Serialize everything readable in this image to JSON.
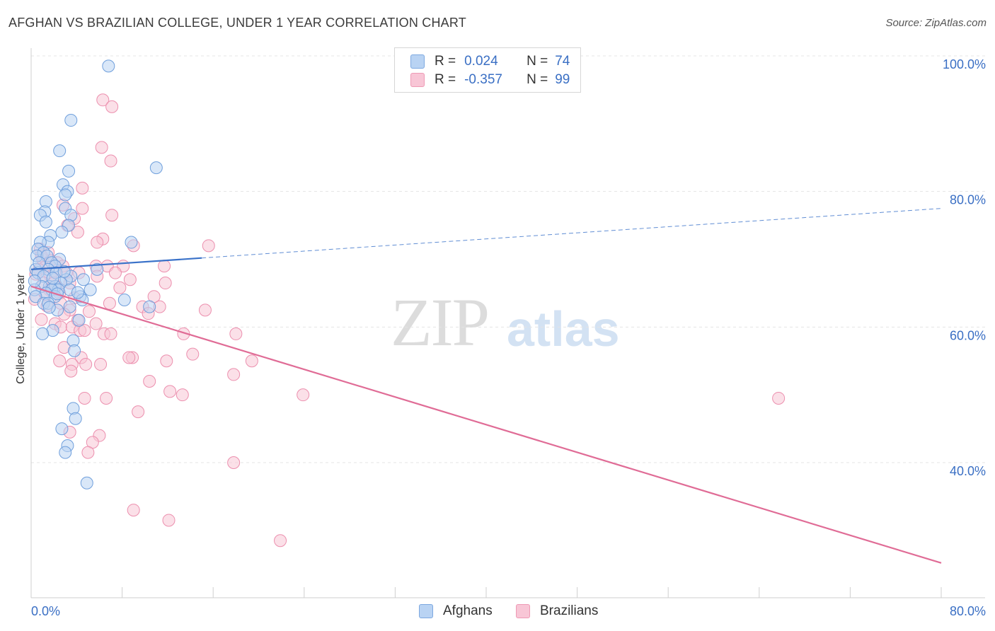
{
  "header": {
    "title": "AFGHAN VS BRAZILIAN COLLEGE, UNDER 1 YEAR CORRELATION CHART",
    "source": "Source: ZipAtlas.com"
  },
  "watermark": {
    "zip": "ZIP",
    "atlas": "atlas"
  },
  "legend": {
    "afghans": {
      "r_label": "R =",
      "r_value": "0.024",
      "n_label": "N =",
      "n_value": "74"
    },
    "brazilians": {
      "r_label": "R =",
      "r_value": "-0.357",
      "n_label": "N =",
      "n_value": "99"
    }
  },
  "bottom_legend": {
    "afghans": "Afghans",
    "brazilians": "Brazilians"
  },
  "colors": {
    "afghans_fill": "#b9d3f3",
    "afghans_stroke": "#6f9fdc",
    "afghans_line": "#3a72c9",
    "brazilians_fill": "#f8c6d6",
    "brazilians_stroke": "#ec8fae",
    "brazilians_line": "#e06c96",
    "axis_value_text": "#3a6fc4",
    "grid": "#e4e4e4"
  },
  "chart_data": {
    "type": "scatter",
    "title": "AFGHAN VS BRAZILIAN COLLEGE, UNDER 1 YEAR CORRELATION CHART",
    "xlabel": "",
    "ylabel": "College, Under 1 year",
    "xlim": [
      0,
      80
    ],
    "ylim": [
      20,
      100
    ],
    "x_tick_labels": [
      "0.0%",
      "80.0%"
    ],
    "y_tick_labels": [
      "100.0%",
      "80.0%",
      "60.0%",
      "40.0%"
    ],
    "y_ticks": [
      100,
      80,
      60,
      40
    ],
    "grid": "horizontal dashed",
    "legend_position": "top-center",
    "series": [
      {
        "name": "Afghans",
        "r": 0.024,
        "n": 74,
        "trend": {
          "x": [
            0,
            80
          ],
          "y": [
            68.5,
            77.5
          ],
          "solid_until_x": 15
        },
        "points": [
          [
            6.8,
            98.5
          ],
          [
            3.5,
            90.5
          ],
          [
            2.5,
            86
          ],
          [
            11,
            83.5
          ],
          [
            3.3,
            83
          ],
          [
            2.8,
            81
          ],
          [
            3.2,
            80
          ],
          [
            3,
            79.5
          ],
          [
            1.3,
            78.5
          ],
          [
            3,
            77.5
          ],
          [
            1.2,
            77
          ],
          [
            0.8,
            76.5
          ],
          [
            3.5,
            76.5
          ],
          [
            1.3,
            75.5
          ],
          [
            3.3,
            75
          ],
          [
            2.7,
            74
          ],
          [
            1.7,
            73.5
          ],
          [
            1.5,
            72.5
          ],
          [
            0.8,
            72.5
          ],
          [
            8.8,
            72.5
          ],
          [
            0.6,
            71.5
          ],
          [
            1.1,
            71
          ],
          [
            0.5,
            70.5
          ],
          [
            1.4,
            70.5
          ],
          [
            2.5,
            70
          ],
          [
            1.8,
            69.5
          ],
          [
            2.1,
            69
          ],
          [
            0.4,
            68.5
          ],
          [
            1.5,
            68.5
          ],
          [
            2.2,
            68
          ],
          [
            5.8,
            68.5
          ],
          [
            0.6,
            68
          ],
          [
            1.1,
            67.5
          ],
          [
            3.5,
            67.5
          ],
          [
            3.1,
            67
          ],
          [
            4.6,
            67
          ],
          [
            2.6,
            66.5
          ],
          [
            1.6,
            66
          ],
          [
            0.9,
            66
          ],
          [
            2.1,
            66
          ],
          [
            2.4,
            65.5
          ],
          [
            0.3,
            65.5
          ],
          [
            1.8,
            65.5
          ],
          [
            5.2,
            65.5
          ],
          [
            3.4,
            65.5
          ],
          [
            1.3,
            65
          ],
          [
            0.4,
            64.5
          ],
          [
            2.1,
            64.5
          ],
          [
            4.3,
            64.5
          ],
          [
            4.5,
            64
          ],
          [
            8.2,
            64
          ],
          [
            1.1,
            63.5
          ],
          [
            1.5,
            63.5
          ],
          [
            10.4,
            63
          ],
          [
            3.4,
            63
          ],
          [
            2.3,
            62.5
          ],
          [
            4.2,
            61
          ],
          [
            1.9,
            59.5
          ],
          [
            1.0,
            59
          ],
          [
            3.7,
            58
          ],
          [
            3.8,
            56.5
          ],
          [
            3.7,
            48
          ],
          [
            3.9,
            46.5
          ],
          [
            2.7,
            45
          ],
          [
            3.2,
            42.5
          ],
          [
            3.0,
            41.5
          ],
          [
            4.9,
            37
          ],
          [
            0.7,
            69.5
          ],
          [
            2.9,
            68.2
          ],
          [
            1.9,
            67.2
          ],
          [
            0.3,
            66.8
          ],
          [
            2.3,
            64.9
          ],
          [
            4.1,
            65.1
          ],
          [
            1.6,
            62.9
          ]
        ]
      },
      {
        "name": "Brazilians",
        "r": -0.357,
        "n": 99,
        "trend": {
          "x": [
            0,
            80
          ],
          "y": [
            66,
            25.2
          ]
        },
        "points": [
          [
            6.3,
            93.5
          ],
          [
            7.1,
            92.5
          ],
          [
            6.2,
            86.5
          ],
          [
            7.0,
            84.5
          ],
          [
            4.5,
            80.5
          ],
          [
            4.5,
            77.5
          ],
          [
            2.8,
            78
          ],
          [
            7.1,
            76.5
          ],
          [
            3.8,
            76
          ],
          [
            3.2,
            75
          ],
          [
            4.1,
            74
          ],
          [
            6.3,
            73
          ],
          [
            5.8,
            72.5
          ],
          [
            9,
            72
          ],
          [
            15.6,
            72
          ],
          [
            0.8,
            71.5
          ],
          [
            1.5,
            71
          ],
          [
            1,
            70
          ],
          [
            2.3,
            69.5
          ],
          [
            1.3,
            69
          ],
          [
            2.8,
            69
          ],
          [
            5.7,
            69
          ],
          [
            6.7,
            69
          ],
          [
            8.1,
            69
          ],
          [
            11.7,
            69
          ],
          [
            0.7,
            68.5
          ],
          [
            2.1,
            68
          ],
          [
            3.1,
            68
          ],
          [
            4.2,
            68
          ],
          [
            1.7,
            67.5
          ],
          [
            5.8,
            67.5
          ],
          [
            7.4,
            68
          ],
          [
            8.7,
            67
          ],
          [
            1.1,
            66.5
          ],
          [
            2,
            66.5
          ],
          [
            3.4,
            66.5
          ],
          [
            11.8,
            66.5
          ],
          [
            1.6,
            65.5
          ],
          [
            2.5,
            65
          ],
          [
            1.3,
            64.8
          ],
          [
            10.8,
            64.5
          ],
          [
            2.6,
            63.5
          ],
          [
            6.9,
            63.5
          ],
          [
            9.8,
            63
          ],
          [
            11.3,
            63
          ],
          [
            3.4,
            62.5
          ],
          [
            10.3,
            62
          ],
          [
            15.3,
            62.5
          ],
          [
            4.1,
            61
          ],
          [
            2.1,
            60.5
          ],
          [
            2.6,
            60
          ],
          [
            3.6,
            60
          ],
          [
            5.7,
            60.5
          ],
          [
            4.3,
            59.5
          ],
          [
            6.4,
            59
          ],
          [
            4.7,
            59.5
          ],
          [
            13.4,
            59
          ],
          [
            18.0,
            59
          ],
          [
            7.0,
            59
          ],
          [
            2.9,
            57
          ],
          [
            14.2,
            56
          ],
          [
            4.4,
            55.5
          ],
          [
            2.5,
            55
          ],
          [
            8.9,
            55.5
          ],
          [
            11.9,
            55
          ],
          [
            3.6,
            54.5
          ],
          [
            4.8,
            54.5
          ],
          [
            6.1,
            54.5
          ],
          [
            8.6,
            55.5
          ],
          [
            19.4,
            55
          ],
          [
            10.4,
            52
          ],
          [
            17.8,
            53
          ],
          [
            3.5,
            53.5
          ],
          [
            12.2,
            50.5
          ],
          [
            13.3,
            50
          ],
          [
            23.9,
            50
          ],
          [
            4.7,
            49.5
          ],
          [
            6.6,
            49.5
          ],
          [
            9.4,
            47.5
          ],
          [
            3.4,
            44.5
          ],
          [
            6.0,
            44
          ],
          [
            5.4,
            43
          ],
          [
            5.0,
            41.5
          ],
          [
            17.8,
            40
          ],
          [
            9.0,
            33
          ],
          [
            12.1,
            31.5
          ],
          [
            21.9,
            28.5
          ],
          [
            65.7,
            49.5
          ],
          [
            0.9,
            70.5
          ],
          [
            1.7,
            69.8
          ],
          [
            2.2,
            66
          ],
          [
            0.4,
            67.8
          ],
          [
            3.8,
            64.3
          ],
          [
            1.4,
            63.1
          ],
          [
            2.9,
            61.9
          ],
          [
            0.9,
            61.1
          ],
          [
            5.1,
            62.3
          ],
          [
            7.8,
            65.8
          ],
          [
            0.3,
            64.1
          ]
        ]
      }
    ]
  }
}
